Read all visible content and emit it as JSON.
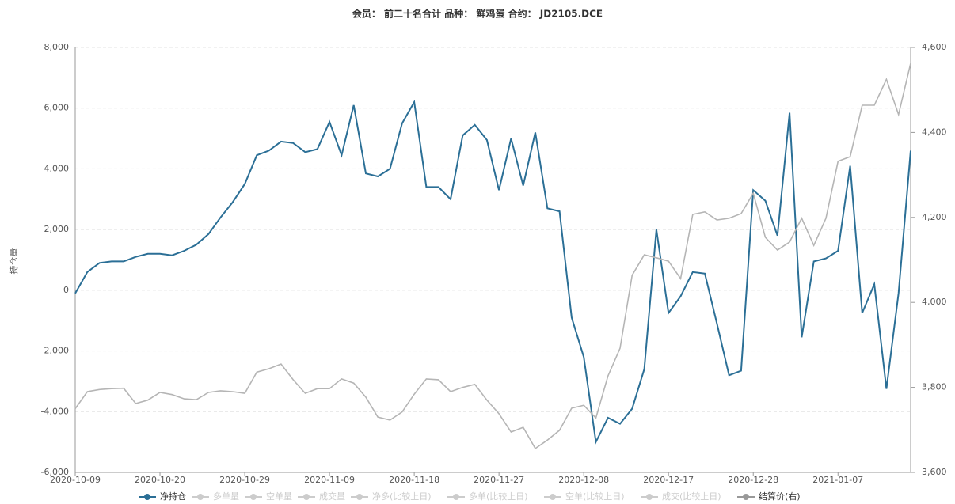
{
  "chart_data": {
    "type": "line",
    "title": "会员： 前二十名合计 品种： 鲜鸡蛋 合约： JD2105.DCE",
    "y_label": "持仓量",
    "categories": [
      "2020-10-09",
      null,
      null,
      null,
      null,
      null,
      null,
      "2020-10-20",
      null,
      null,
      null,
      null,
      null,
      null,
      "2020-10-29",
      null,
      null,
      null,
      null,
      null,
      null,
      "2020-11-09",
      null,
      null,
      null,
      null,
      null,
      null,
      "2020-11-18",
      null,
      null,
      null,
      null,
      null,
      null,
      "2020-11-27",
      null,
      null,
      null,
      null,
      null,
      null,
      "2020-12-08",
      null,
      null,
      null,
      null,
      null,
      null,
      "2020-12-17",
      null,
      null,
      null,
      null,
      null,
      null,
      "2020-12-28",
      null,
      null,
      null,
      null,
      null,
      null,
      "2021-01-07",
      null,
      null,
      null,
      null,
      null,
      null
    ],
    "series": [
      {
        "name": "净持仓",
        "color": "#2b6f96",
        "values": [
          -100,
          600,
          900,
          950,
          950,
          1100,
          1200,
          1200,
          1150,
          1300,
          1500,
          1850,
          2400,
          2900,
          3500,
          4450,
          4600,
          4900,
          4850,
          4550,
          4650,
          5550,
          4450,
          6100,
          3850,
          3750,
          4000,
          5500,
          6200,
          3400,
          3400,
          3000,
          5100,
          5450,
          4950,
          3300,
          5000,
          3450,
          5200,
          2700,
          2600,
          -900,
          -2200,
          -5000,
          -4200,
          -4400,
          -3900,
          -2600,
          2000,
          -750,
          -200,
          600,
          550,
          -1100,
          -2800,
          -2650,
          3300,
          2950,
          1800,
          5850,
          -1550,
          950,
          1050,
          1300,
          4100,
          -750,
          200,
          -3250,
          -100,
          4600
        ]
      },
      {
        "name": "结算价(右)",
        "color": "#b5b5b5",
        "axis": "y2",
        "values": [
          3750,
          3790,
          3795,
          3797,
          3798,
          3762,
          3770,
          3788,
          3783,
          3773,
          3771,
          3788,
          3792,
          3790,
          3786,
          3836,
          3844,
          3855,
          3818,
          3786,
          3797,
          3797,
          3820,
          3810,
          3777,
          3730,
          3723,
          3742,
          3784,
          3820,
          3818,
          3790,
          3800,
          3807,
          3770,
          3738,
          3695,
          3706,
          3656,
          3676,
          3699,
          3751,
          3758,
          3728,
          3827,
          3892,
          4064,
          4112,
          4105,
          4097,
          4056,
          4207,
          4213,
          4194,
          4198,
          4209,
          4257,
          4153,
          4123,
          4142,
          4198,
          4134,
          4198,
          4332,
          4343,
          4464,
          4464,
          4525,
          4442,
          4563
        ]
      }
    ],
    "legend_hidden": [
      "多单量",
      "空单量",
      "成交量",
      "净多(比较上日)",
      "多单(比较上日)",
      "空单(比较上日)",
      "成交(比较上日)"
    ],
    "ylim": [
      -6000,
      8000
    ],
    "yticks": [
      {
        "value": -6000,
        "label": "-6,000"
      },
      {
        "value": -4000,
        "label": "-4,000"
      },
      {
        "value": -2000,
        "label": "-2,000"
      },
      0,
      {
        "value": 2000,
        "label": "2,000"
      },
      {
        "value": 4000,
        "label": "4,000"
      },
      {
        "value": 6000,
        "label": "6,000"
      },
      {
        "value": 8000,
        "label": "8,000"
      }
    ],
    "y2lim": [
      3600,
      4600
    ],
    "y2ticks": [
      {
        "value": 3600,
        "label": "3,600"
      },
      {
        "value": 3800,
        "label": "3,800"
      },
      {
        "value": 4000,
        "label": "4,000"
      },
      {
        "value": 4200,
        "label": "4,200"
      },
      {
        "value": 4400,
        "label": "4,400"
      },
      {
        "value": 4600,
        "label": "4,600"
      }
    ],
    "grid": true
  }
}
